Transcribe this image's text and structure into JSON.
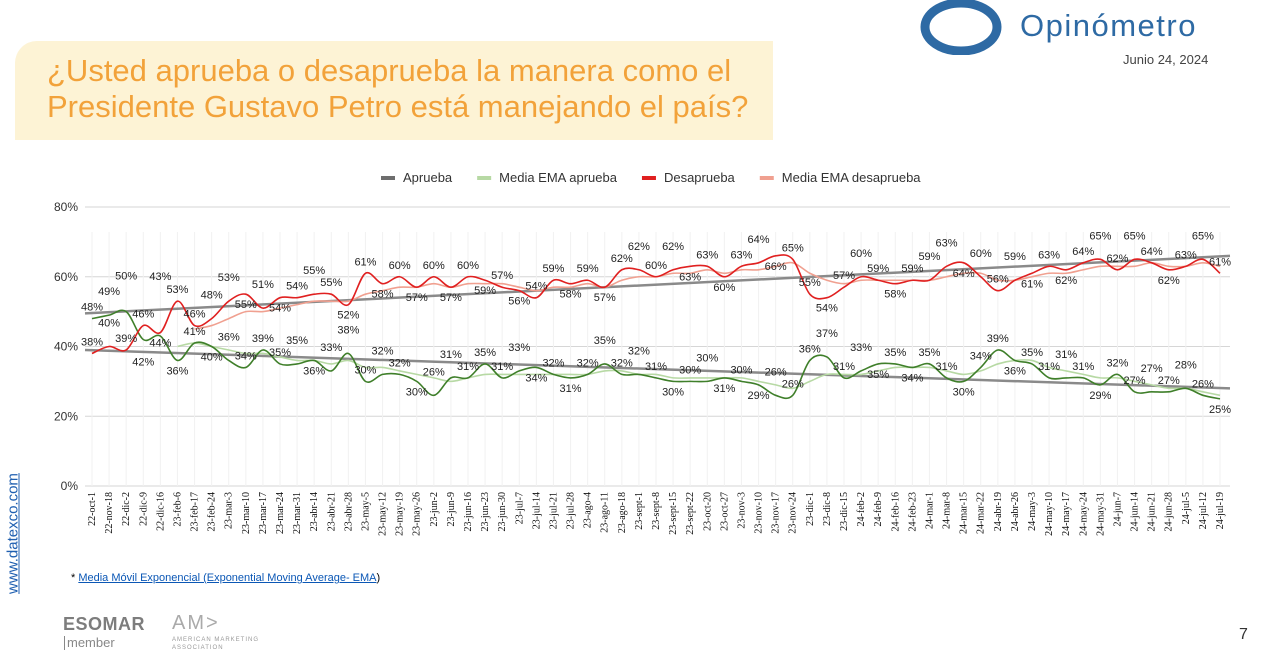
{
  "header": {
    "title_line1": "¿Usted aprueba o desaprueba la manera como el",
    "title_line2": "Presidente Gustavo Petro está manejando el país?",
    "brand": "Opinómetro",
    "date": "Junio 24, 2024",
    "brand_color": "#2e6aa4",
    "title_color": "#f2a23a"
  },
  "side_url": "www.datexco.com",
  "footnote": {
    "star": "*",
    "link": "Media Móvil Exponencial (Exponential Moving Average- EMA",
    "tail": ")"
  },
  "logos": {
    "esomar": "ESOMAR",
    "esomar_sub": "member",
    "ama": "AM>",
    "ama_sub": "AMERICAN MARKETING ASSOCIATION"
  },
  "page_number": "7",
  "chart_data": {
    "type": "line",
    "title": "",
    "xlabel": "",
    "ylabel": "",
    "ylim": [
      0,
      80
    ],
    "yticks": [
      "0%",
      "20%",
      "40%",
      "60%",
      "80%"
    ],
    "grid": true,
    "legend_placement": "top",
    "legend": [
      {
        "name": "Aprueba",
        "color": "#6e6e6e"
      },
      {
        "name": "Media EMA aprueba",
        "color": "#b7d9a4"
      },
      {
        "name": "Desaprueba",
        "color": "#e02020"
      },
      {
        "name": "Media EMA desaprueba",
        "color": "#f0a090"
      }
    ],
    "categories": [
      "22-oct-1",
      "22-nov-18",
      "22-dic-2",
      "22-dic-9",
      "22-dic-16",
      "23-feb-6",
      "23-feb-17",
      "23-feb-24",
      "23-mar-3",
      "23-mar-10",
      "23-mar-17",
      "23-mar-24",
      "23-mar-31",
      "23-abr-14",
      "23-abr-21",
      "23-abr-28",
      "23-may-5",
      "23-may-12",
      "23-may-19",
      "23-may-26",
      "23-jun-2",
      "23-jun-9",
      "23-jun-16",
      "23-jun-23",
      "23-jun-30",
      "23-jul-7",
      "23-jul-14",
      "23-jul-21",
      "23-jul-28",
      "23-ago-4",
      "23-ago-11",
      "23-ago-18",
      "23-sept-1",
      "23-sept-8",
      "23-sept-15",
      "23-sept-22",
      "23-oct-20",
      "23-oct-27",
      "23-nov-3",
      "23-nov-10",
      "23-nov-17",
      "23-nov-24",
      "23-dic-1",
      "23-dic-8",
      "23-dic-15",
      "24-feb-2",
      "24-feb-9",
      "24-feb-16",
      "24-feb-23",
      "24-mar-1",
      "24-mar-8",
      "24-mar-15",
      "24-mar-22",
      "24-abr-19",
      "24-abr-26",
      "24-may-3",
      "24-may-10",
      "24-may-17",
      "24-may-24",
      "24-may-31",
      "24-jun-7",
      "24-jun-14",
      "24-jun-21",
      "24-jun-28",
      "24-jul-5",
      "24-jul-12",
      "24-jul-19"
    ],
    "series": [
      {
        "name": "Aprueba",
        "color": "#3f7f2a",
        "trend_color": "#8a8a8a",
        "trend": [
          39,
          28
        ],
        "values": [
          48,
          49,
          50,
          42,
          43,
          36,
          41,
          40,
          36,
          34,
          39,
          35,
          35,
          36,
          33,
          38,
          30,
          32,
          32,
          30,
          26,
          31,
          31,
          35,
          31,
          33,
          34,
          32,
          31,
          32,
          35,
          32,
          32,
          31,
          30,
          30,
          30,
          31,
          30,
          29,
          26,
          26,
          36,
          37,
          31,
          33,
          35,
          35,
          34,
          35,
          31,
          30,
          34,
          39,
          36,
          35,
          31,
          31,
          31,
          29,
          32,
          27,
          27,
          27,
          28,
          26,
          25
        ]
      },
      {
        "name": "Media EMA aprueba",
        "color": "#b7d9a4",
        "values": [
          null,
          null,
          null,
          null,
          null,
          40,
          41,
          40,
          39,
          38,
          38,
          37,
          36,
          36,
          35,
          36,
          34,
          34,
          33,
          32,
          31,
          30,
          31,
          32,
          32,
          32,
          32,
          32,
          32,
          32,
          33,
          33,
          32,
          32,
          31,
          31,
          31,
          31,
          31,
          30,
          29,
          28,
          30,
          32,
          32,
          32,
          33,
          34,
          34,
          34,
          33,
          32,
          33,
          35,
          36,
          36,
          34,
          33,
          32,
          31,
          31,
          30,
          29,
          28,
          28,
          27,
          26
        ]
      },
      {
        "name": "Desaprueba",
        "color": "#e02020",
        "trend_color": "#8a8a8a",
        "trend": [
          49.5,
          66
        ],
        "values": [
          38,
          40,
          39,
          46,
          44,
          53,
          46,
          48,
          53,
          55,
          51,
          54,
          54,
          55,
          55,
          52,
          61,
          58,
          60,
          57,
          60,
          57,
          60,
          59,
          57,
          56,
          54,
          59,
          58,
          59,
          57,
          62,
          62,
          60,
          62,
          63,
          63,
          60,
          63,
          64,
          66,
          65,
          55,
          54,
          57,
          60,
          59,
          58,
          59,
          59,
          63,
          64,
          60,
          56,
          59,
          61,
          63,
          62,
          64,
          65,
          62,
          65,
          64,
          62,
          63,
          65,
          61
        ]
      },
      {
        "name": "Media EMA desaprueba",
        "color": "#f0a090",
        "values": [
          null,
          null,
          null,
          null,
          null,
          null,
          45,
          46,
          48,
          50,
          50,
          51,
          52,
          53,
          53,
          53,
          55,
          56,
          57,
          57,
          58,
          57,
          58,
          58,
          58,
          57,
          56,
          57,
          57,
          58,
          57,
          59,
          60,
          60,
          61,
          61,
          62,
          61,
          62,
          62,
          63,
          64,
          61,
          59,
          58,
          59,
          59,
          59,
          59,
          59,
          60,
          61,
          61,
          59,
          59,
          60,
          61,
          61,
          62,
          63,
          63,
          63,
          64,
          63,
          63,
          64,
          63
        ]
      }
    ]
  }
}
